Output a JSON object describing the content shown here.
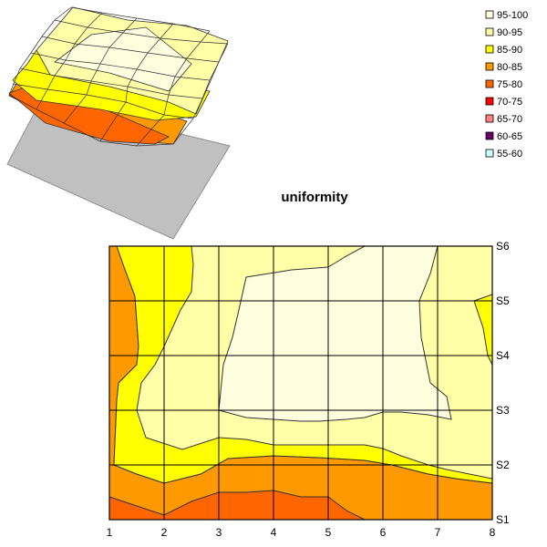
{
  "chart_data": [
    {
      "type": "surface",
      "title": "uniformity",
      "legend": {
        "placement": "top-right",
        "entries": [
          {
            "label": "95-100",
            "color": "#FFFFE0"
          },
          {
            "label": "90-95",
            "color": "#FFFFA8"
          },
          {
            "label": "85-90",
            "color": "#FFFF00"
          },
          {
            "label": "80-85",
            "color": "#FF9900"
          },
          {
            "label": "75-80",
            "color": "#FF6600"
          },
          {
            "label": "70-75",
            "color": "#FF0000"
          },
          {
            "label": "65-70",
            "color": "#FF8080"
          },
          {
            "label": "60-65",
            "color": "#660066"
          },
          {
            "label": "55-60",
            "color": "#CCFFFF"
          }
        ]
      },
      "x": [
        1,
        2,
        3,
        4,
        5,
        6,
        7,
        8
      ],
      "y": [
        "S1",
        "S2",
        "S3",
        "S4",
        "S5",
        "S6"
      ]
    },
    {
      "type": "contour",
      "title": "uniformity",
      "x": [
        1,
        2,
        3,
        4,
        5,
        6,
        7,
        8
      ],
      "y": [
        "S1",
        "S2",
        "S3",
        "S4",
        "S5",
        "S6"
      ],
      "grid": true,
      "xlim": [
        1,
        8
      ],
      "ylim": [
        "S1",
        "S6"
      ]
    }
  ]
}
